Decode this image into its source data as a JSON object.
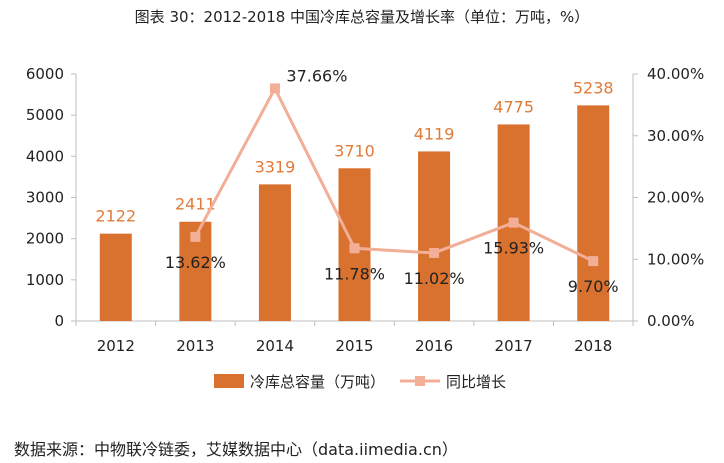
{
  "title": "图表 30：2012-2018 中国冷库总容量及增长率（单位：万吨，%）",
  "source": "数据来源：中物联冷链委，艾媒数据中心（data.iimedia.cn）",
  "colors": {
    "bar": "#D9712F",
    "bar_label": "#E07B39",
    "line": "#F2AE97",
    "marker": "#F2AE97",
    "axis": "#BFBFBF"
  },
  "chart_data": {
    "type": "bar",
    "title": "2012-2018 中国冷库总容量及增长率（单位：万吨，%）",
    "categories": [
      "2012",
      "2013",
      "2014",
      "2015",
      "2016",
      "2017",
      "2018"
    ],
    "series": [
      {
        "name": "冷库总容量（万吨）",
        "type": "bar",
        "axis": "left",
        "values": [
          2122,
          2411,
          3319,
          3710,
          4119,
          4775,
          5238
        ],
        "labels": [
          "2122",
          "2411",
          "3319",
          "3710",
          "4119",
          "4775",
          "5238"
        ]
      },
      {
        "name": "同比增长",
        "type": "line",
        "axis": "right",
        "values": [
          null,
          13.62,
          37.66,
          11.78,
          11.02,
          15.93,
          9.7
        ],
        "labels": [
          "",
          "13.62%",
          "37.66%",
          "11.78%",
          "11.02%",
          "15.93%",
          "9.70%"
        ]
      }
    ],
    "y_left": {
      "min": 0,
      "max": 6000,
      "ticks": [
        "0",
        "1000",
        "2000",
        "3000",
        "4000",
        "5000",
        "6000"
      ]
    },
    "y_right": {
      "min": 0,
      "max": 40,
      "ticks": [
        "0.00%",
        "10.00%",
        "20.00%",
        "30.00%",
        "40.00%"
      ]
    },
    "grid": false,
    "legend_position": "bottom"
  }
}
